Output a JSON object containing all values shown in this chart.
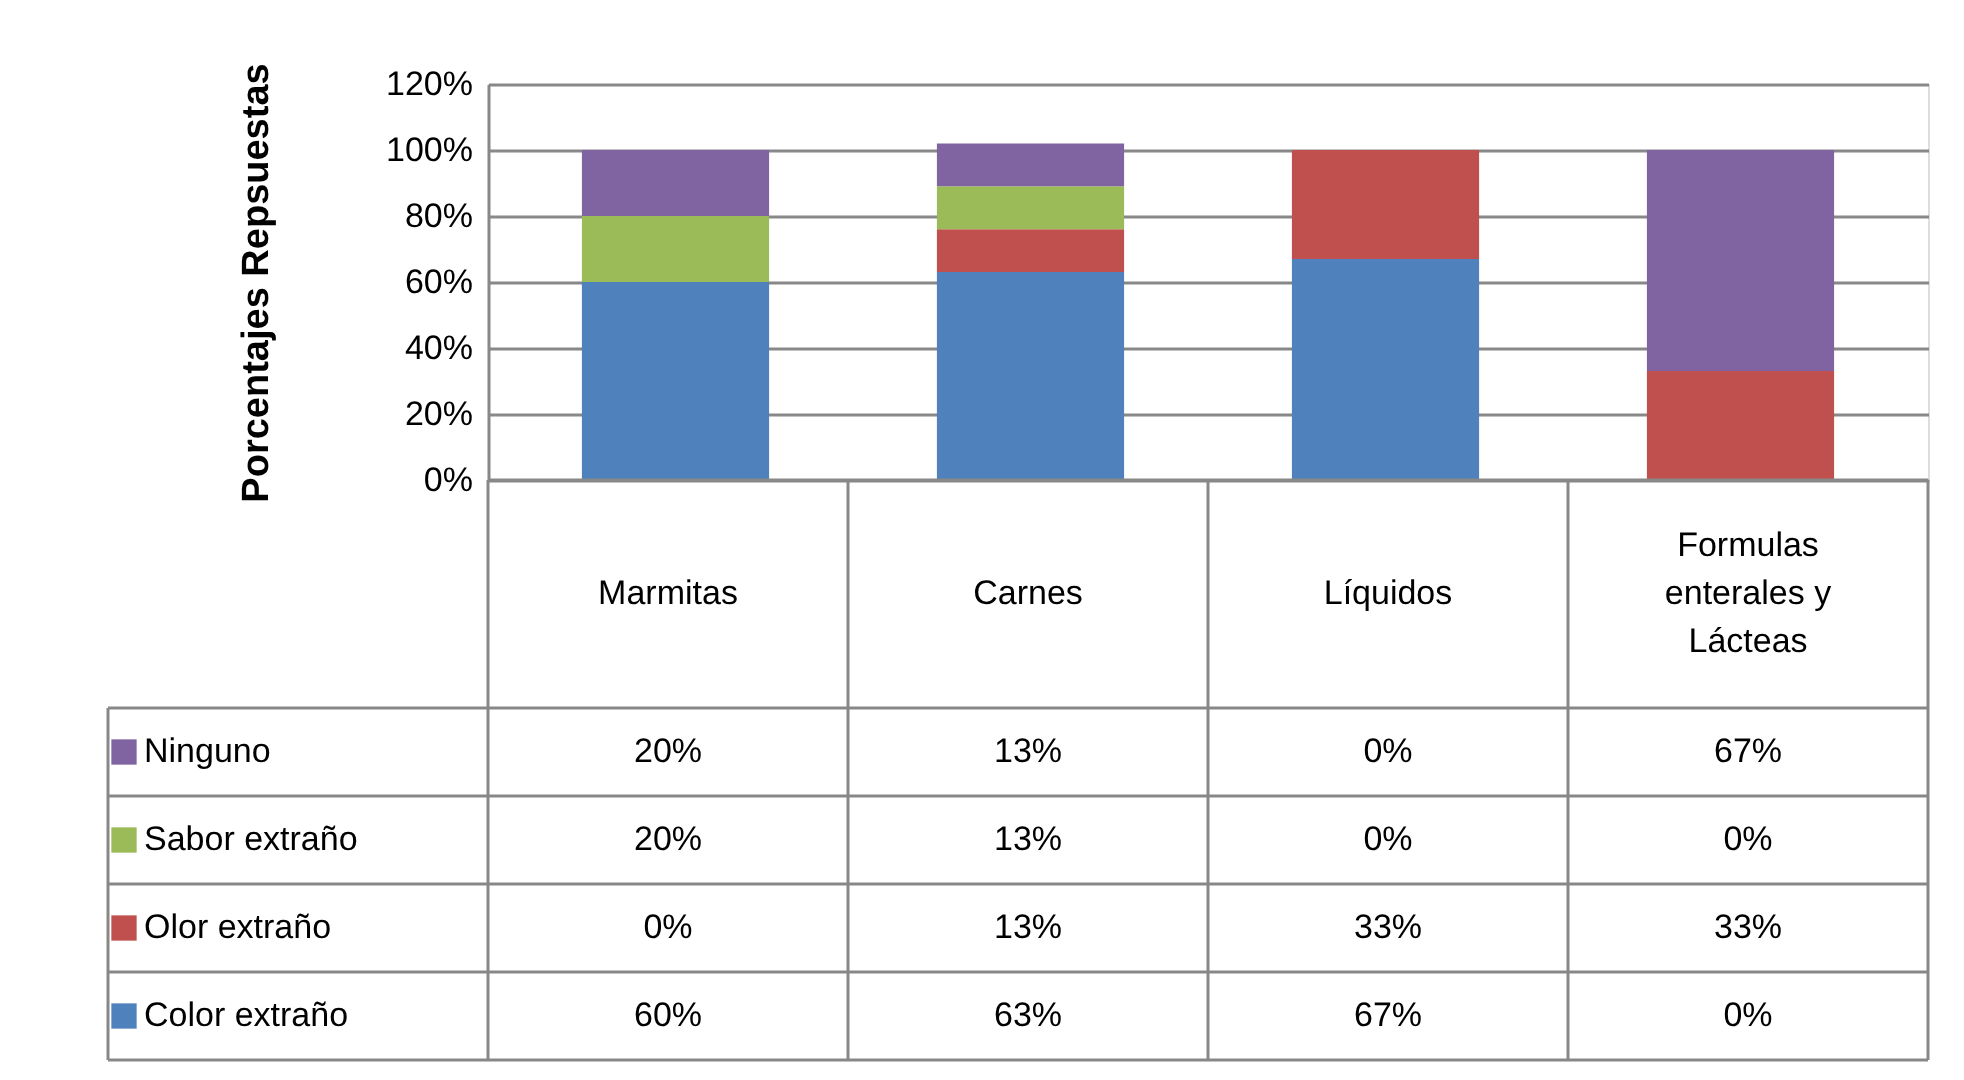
{
  "chart_data": {
    "type": "bar",
    "stacked": true,
    "categories": [
      "Marmitas",
      "Carnes",
      "Líquidos",
      "Formulas enterales y Lácteas"
    ],
    "ylabel": "Porcentajes Repsuestas",
    "ylim": [
      0,
      120
    ],
    "yticks": [
      {
        "value": 0,
        "label": "0%"
      },
      {
        "value": 20,
        "label": "20%"
      },
      {
        "value": 40,
        "label": "40%"
      },
      {
        "value": 60,
        "label": "60%"
      },
      {
        "value": 80,
        "label": "80%"
      },
      {
        "value": 100,
        "label": "100%"
      },
      {
        "value": 120,
        "label": "120%"
      }
    ],
    "grid": "y",
    "legend": "bottom left",
    "series": [
      {
        "name": "Color extraño",
        "color": "#4f81bd",
        "values": [
          60,
          63,
          67,
          0
        ],
        "value_labels": [
          "60%",
          "63%",
          "67%",
          "0%"
        ]
      },
      {
        "name": "Olor extraño",
        "color": "#c0504d",
        "values": [
          0,
          13,
          33,
          33
        ],
        "value_labels": [
          "0%",
          "13%",
          "33%",
          "33%"
        ]
      },
      {
        "name": "Sabor extraño",
        "color": "#9bbb59",
        "values": [
          20,
          13,
          0,
          0
        ],
        "value_labels": [
          "20%",
          "13%",
          "0%",
          "0%"
        ]
      },
      {
        "name": "Ninguno",
        "color": "#8064a2",
        "values": [
          20,
          13,
          0,
          67
        ],
        "value_labels": [
          "20%",
          "13%",
          "0%",
          "67%"
        ]
      }
    ]
  }
}
